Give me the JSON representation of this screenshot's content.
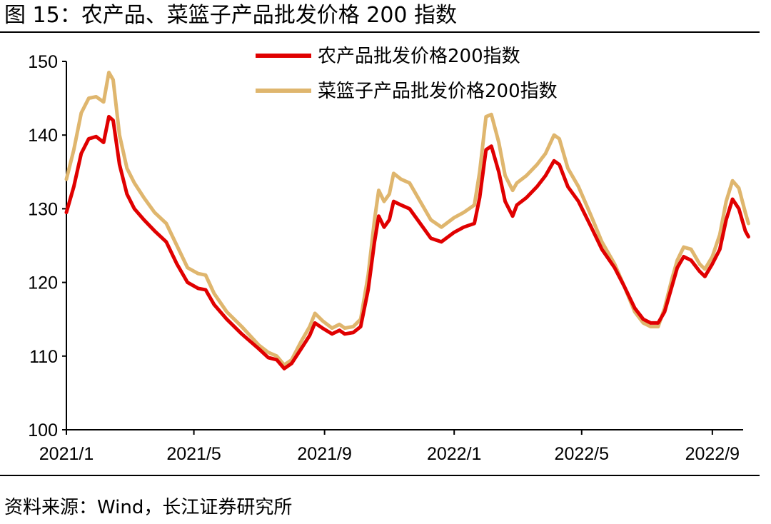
{
  "figure": {
    "title": "图 15：农产品、菜篮子产品批发价格 200 指数",
    "source": "资料来源：Wind，长江证券研究所"
  },
  "chart_data": {
    "type": "line",
    "title": "",
    "xlabel": "",
    "ylabel": "",
    "ylim": [
      100,
      150
    ],
    "yticks": [
      100,
      110,
      120,
      130,
      140,
      150
    ],
    "xlim": [
      "2021-01-01",
      "2022-09-30"
    ],
    "xticks": [
      {
        "date": "2021-01-01",
        "label": "2021/1"
      },
      {
        "date": "2021-05-01",
        "label": "2021/5"
      },
      {
        "date": "2021-09-01",
        "label": "2021/9"
      },
      {
        "date": "2022-01-01",
        "label": "2022/1"
      },
      {
        "date": "2022-05-01",
        "label": "2022/5"
      },
      {
        "date": "2022-09-01",
        "label": "2022/9"
      }
    ],
    "grid": false,
    "legend_position": "top-right",
    "series": [
      {
        "name": "农产品批发价格200指数",
        "color": "#e00000",
        "points": [
          [
            "2021-01-01",
            129.5
          ],
          [
            "2021-01-08",
            133.0
          ],
          [
            "2021-01-15",
            137.5
          ],
          [
            "2021-01-22",
            139.5
          ],
          [
            "2021-01-29",
            139.8
          ],
          [
            "2021-02-05",
            139.0
          ],
          [
            "2021-02-10",
            142.5
          ],
          [
            "2021-02-14",
            142.0
          ],
          [
            "2021-02-20",
            136.0
          ],
          [
            "2021-02-27",
            132.0
          ],
          [
            "2021-03-06",
            130.0
          ],
          [
            "2021-03-15",
            128.5
          ],
          [
            "2021-03-25",
            127.0
          ],
          [
            "2021-04-05",
            125.5
          ],
          [
            "2021-04-15",
            122.5
          ],
          [
            "2021-04-25",
            120.0
          ],
          [
            "2021-05-05",
            119.2
          ],
          [
            "2021-05-12",
            119.0
          ],
          [
            "2021-05-20",
            117.0
          ],
          [
            "2021-06-01",
            115.0
          ],
          [
            "2021-06-15",
            113.0
          ],
          [
            "2021-07-01",
            111.0
          ],
          [
            "2021-07-10",
            109.8
          ],
          [
            "2021-07-18",
            109.5
          ],
          [
            "2021-07-25",
            108.3
          ],
          [
            "2021-08-01",
            109.0
          ],
          [
            "2021-08-10",
            111.0
          ],
          [
            "2021-08-18",
            112.8
          ],
          [
            "2021-08-23",
            114.5
          ],
          [
            "2021-08-30",
            113.8
          ],
          [
            "2021-09-08",
            113.0
          ],
          [
            "2021-09-15",
            113.5
          ],
          [
            "2021-09-20",
            113.0
          ],
          [
            "2021-09-28",
            113.2
          ],
          [
            "2021-10-05",
            114.0
          ],
          [
            "2021-10-12",
            119.0
          ],
          [
            "2021-10-18",
            125.5
          ],
          [
            "2021-10-22",
            129.0
          ],
          [
            "2021-10-27",
            127.5
          ],
          [
            "2021-11-01",
            128.5
          ],
          [
            "2021-11-05",
            131.0
          ],
          [
            "2021-11-12",
            130.5
          ],
          [
            "2021-11-20",
            130.0
          ],
          [
            "2021-11-30",
            128.0
          ],
          [
            "2021-12-10",
            126.0
          ],
          [
            "2021-12-20",
            125.5
          ],
          [
            "2022-01-01",
            126.8
          ],
          [
            "2022-01-10",
            127.5
          ],
          [
            "2022-01-20",
            128.0
          ],
          [
            "2022-01-25",
            131.5
          ],
          [
            "2022-01-31",
            138.0
          ],
          [
            "2022-02-05",
            138.5
          ],
          [
            "2022-02-12",
            135.0
          ],
          [
            "2022-02-18",
            131.0
          ],
          [
            "2022-02-25",
            129.0
          ],
          [
            "2022-03-01",
            130.5
          ],
          [
            "2022-03-10",
            131.5
          ],
          [
            "2022-03-20",
            133.0
          ],
          [
            "2022-03-28",
            134.5
          ],
          [
            "2022-04-05",
            136.5
          ],
          [
            "2022-04-10",
            136.0
          ],
          [
            "2022-04-18",
            133.0
          ],
          [
            "2022-04-28",
            131.0
          ],
          [
            "2022-05-10",
            127.5
          ],
          [
            "2022-05-20",
            124.5
          ],
          [
            "2022-06-01",
            122.0
          ],
          [
            "2022-06-10",
            119.5
          ],
          [
            "2022-06-20",
            116.5
          ],
          [
            "2022-06-28",
            115.0
          ],
          [
            "2022-07-05",
            114.5
          ],
          [
            "2022-07-12",
            114.5
          ],
          [
            "2022-07-18",
            116.0
          ],
          [
            "2022-07-25",
            119.5
          ],
          [
            "2022-07-30",
            122.0
          ],
          [
            "2022-08-05",
            123.5
          ],
          [
            "2022-08-12",
            123.0
          ],
          [
            "2022-08-20",
            121.5
          ],
          [
            "2022-08-25",
            120.8
          ],
          [
            "2022-09-01",
            122.5
          ],
          [
            "2022-09-08",
            124.5
          ],
          [
            "2022-09-14",
            128.5
          ],
          [
            "2022-09-20",
            131.3
          ],
          [
            "2022-09-26",
            130.0
          ],
          [
            "2022-10-02",
            127.0
          ],
          [
            "2022-10-05",
            126.2
          ]
        ]
      },
      {
        "name": "菜篮子产品批发价格200指数",
        "color": "#dfb66e",
        "points": [
          [
            "2021-01-01",
            134.0
          ],
          [
            "2021-01-08",
            138.0
          ],
          [
            "2021-01-15",
            143.0
          ],
          [
            "2021-01-22",
            145.0
          ],
          [
            "2021-01-29",
            145.2
          ],
          [
            "2021-02-05",
            144.5
          ],
          [
            "2021-02-10",
            148.5
          ],
          [
            "2021-02-14",
            147.5
          ],
          [
            "2021-02-20",
            140.0
          ],
          [
            "2021-02-27",
            135.5
          ],
          [
            "2021-03-06",
            133.5
          ],
          [
            "2021-03-15",
            131.5
          ],
          [
            "2021-03-25",
            129.5
          ],
          [
            "2021-04-05",
            128.0
          ],
          [
            "2021-04-15",
            125.0
          ],
          [
            "2021-04-25",
            122.0
          ],
          [
            "2021-05-05",
            121.2
          ],
          [
            "2021-05-12",
            121.0
          ],
          [
            "2021-05-20",
            118.5
          ],
          [
            "2021-06-01",
            116.0
          ],
          [
            "2021-06-15",
            114.0
          ],
          [
            "2021-07-01",
            111.5
          ],
          [
            "2021-07-10",
            110.5
          ],
          [
            "2021-07-18",
            110.0
          ],
          [
            "2021-07-25",
            108.8
          ],
          [
            "2021-08-01",
            109.5
          ],
          [
            "2021-08-10",
            112.0
          ],
          [
            "2021-08-18",
            114.0
          ],
          [
            "2021-08-23",
            115.8
          ],
          [
            "2021-08-30",
            114.8
          ],
          [
            "2021-09-08",
            113.8
          ],
          [
            "2021-09-15",
            114.3
          ],
          [
            "2021-09-20",
            113.8
          ],
          [
            "2021-09-28",
            114.0
          ],
          [
            "2021-10-05",
            115.0
          ],
          [
            "2021-10-12",
            121.0
          ],
          [
            "2021-10-18",
            128.5
          ],
          [
            "2021-10-22",
            132.5
          ],
          [
            "2021-10-27",
            131.0
          ],
          [
            "2021-11-01",
            132.0
          ],
          [
            "2021-11-05",
            134.8
          ],
          [
            "2021-11-12",
            134.0
          ],
          [
            "2021-11-20",
            133.5
          ],
          [
            "2021-11-30",
            131.0
          ],
          [
            "2021-12-10",
            128.5
          ],
          [
            "2021-12-20",
            127.5
          ],
          [
            "2022-01-01",
            128.8
          ],
          [
            "2022-01-10",
            129.5
          ],
          [
            "2022-01-20",
            130.5
          ],
          [
            "2022-01-25",
            135.0
          ],
          [
            "2022-01-31",
            142.5
          ],
          [
            "2022-02-05",
            142.8
          ],
          [
            "2022-02-12",
            139.0
          ],
          [
            "2022-02-18",
            134.5
          ],
          [
            "2022-02-25",
            132.5
          ],
          [
            "2022-03-01",
            133.5
          ],
          [
            "2022-03-10",
            134.5
          ],
          [
            "2022-03-20",
            136.0
          ],
          [
            "2022-03-28",
            137.5
          ],
          [
            "2022-04-05",
            140.0
          ],
          [
            "2022-04-10",
            139.5
          ],
          [
            "2022-04-18",
            135.5
          ],
          [
            "2022-04-28",
            133.0
          ],
          [
            "2022-05-10",
            129.0
          ],
          [
            "2022-05-20",
            125.5
          ],
          [
            "2022-06-01",
            122.5
          ],
          [
            "2022-06-10",
            119.5
          ],
          [
            "2022-06-20",
            116.0
          ],
          [
            "2022-06-28",
            114.5
          ],
          [
            "2022-07-05",
            114.0
          ],
          [
            "2022-07-12",
            114.0
          ],
          [
            "2022-07-18",
            116.5
          ],
          [
            "2022-07-25",
            120.5
          ],
          [
            "2022-07-30",
            123.0
          ],
          [
            "2022-08-05",
            124.8
          ],
          [
            "2022-08-12",
            124.5
          ],
          [
            "2022-08-20",
            122.5
          ],
          [
            "2022-08-25",
            121.8
          ],
          [
            "2022-09-01",
            123.5
          ],
          [
            "2022-09-08",
            126.5
          ],
          [
            "2022-09-14",
            131.0
          ],
          [
            "2022-09-20",
            133.8
          ],
          [
            "2022-09-26",
            132.8
          ],
          [
            "2022-10-02",
            129.5
          ],
          [
            "2022-10-05",
            128.0
          ]
        ]
      }
    ]
  }
}
